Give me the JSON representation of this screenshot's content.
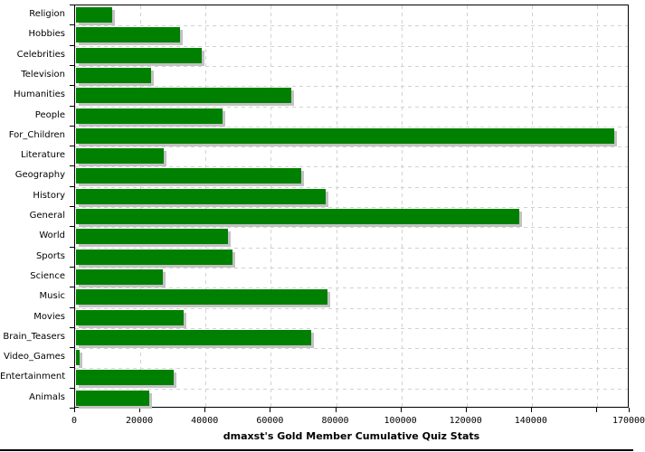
{
  "chart_data": {
    "type": "bar",
    "orientation": "horizontal",
    "title": "dmaxst's Gold Member Cumulative Quiz Stats",
    "categories": [
      "Religion",
      "Hobbies",
      "Celebrities",
      "Television",
      "Humanities",
      "People",
      "For_Children",
      "Literature",
      "Geography",
      "History",
      "General",
      "World",
      "Sports",
      "Science",
      "Music",
      "Movies",
      "Brain_Teasers",
      "Video_Games",
      "Entertainment",
      "Animals"
    ],
    "values": [
      11000,
      32000,
      38500,
      23000,
      66000,
      45000,
      165000,
      27000,
      69000,
      76500,
      136000,
      46500,
      48000,
      26500,
      77000,
      33000,
      72000,
      1000,
      30000,
      22500
    ],
    "xlim": [
      0,
      170000
    ],
    "x_ticks": [
      {
        "value": 0,
        "label": "0"
      },
      {
        "value": 20000,
        "label": "20000"
      },
      {
        "value": 40000,
        "label": "40000"
      },
      {
        "value": 60000,
        "label": "60000"
      },
      {
        "value": 80000,
        "label": "80000"
      },
      {
        "value": 100000,
        "label": "100000"
      },
      {
        "value": 120000,
        "label": "120000"
      },
      {
        "value": 140000,
        "label": "140000"
      },
      {
        "value": 160000,
        "label": ""
      },
      {
        "value": 170000,
        "label": "170000"
      }
    ],
    "grid": true,
    "legend": "none",
    "bar_color": "#008000",
    "bar_shadow_color": "#c2c2c2",
    "gridline_color": "#d2d2d2",
    "axis_color": "#000000",
    "background_color": "#ffffff"
  }
}
